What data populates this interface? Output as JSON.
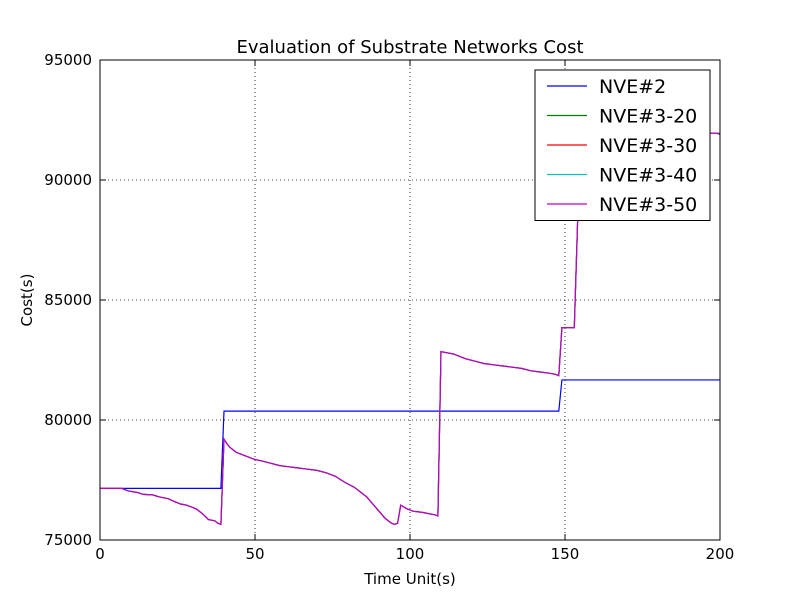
{
  "chart_data": {
    "type": "line",
    "title": "Evaluation of Substrate Networks Cost",
    "xlabel": "Time Unit(s)",
    "ylabel": "Cost(s)",
    "xlim": [
      0,
      200
    ],
    "ylim": [
      75000,
      95000
    ],
    "xticks": [
      0,
      50,
      100,
      150,
      200
    ],
    "yticks": [
      75000,
      80000,
      85000,
      90000,
      95000
    ],
    "grid": true,
    "legend_position": "top-right",
    "series": [
      {
        "name": "NVE#2",
        "color": "#0000ff",
        "x": [
          0,
          39,
          40,
          148,
          149,
          200
        ],
        "y": [
          77150,
          77150,
          80370,
          80370,
          81670,
          81670
        ]
      },
      {
        "name": "NVE#3-20",
        "color": "#008000",
        "x": [
          0,
          7,
          9,
          12,
          14,
          17,
          19,
          22,
          24,
          26,
          28,
          31,
          33,
          35,
          37,
          38,
          39,
          40,
          41,
          42,
          44,
          46,
          48,
          50,
          52,
          55,
          58,
          61,
          64,
          67,
          70,
          73,
          76,
          79,
          82,
          84,
          86,
          88,
          90,
          92,
          94,
          95,
          96,
          97,
          99,
          101,
          104,
          106,
          108,
          109,
          110,
          112,
          114,
          116,
          118,
          121,
          124,
          127,
          130,
          133,
          136,
          139,
          142,
          145,
          147,
          148,
          149,
          151,
          152,
          153,
          155,
          158,
          160,
          162,
          165,
          168,
          171,
          174,
          177,
          180,
          183,
          186,
          189,
          192,
          195,
          197,
          199,
          200
        ],
        "y": [
          77150,
          77150,
          77050,
          76980,
          76900,
          76880,
          76800,
          76720,
          76600,
          76500,
          76450,
          76300,
          76100,
          75850,
          75800,
          75700,
          75650,
          79200,
          79000,
          78850,
          78650,
          78550,
          78450,
          78350,
          78300,
          78200,
          78100,
          78050,
          78000,
          77950,
          77900,
          77800,
          77650,
          77400,
          77200,
          77000,
          76800,
          76500,
          76200,
          75900,
          75700,
          75650,
          75700,
          76450,
          76300,
          76200,
          76150,
          76100,
          76050,
          76000,
          82850,
          82800,
          82750,
          82650,
          82550,
          82450,
          82350,
          82300,
          82250,
          82200,
          82150,
          82050,
          82000,
          81950,
          81900,
          81850,
          83850,
          83850,
          83850,
          83850,
          92150,
          92100,
          92100,
          92050,
          92050,
          92050,
          92000,
          92000,
          92000,
          92000,
          92000,
          92000,
          92000,
          92000,
          92000,
          91950,
          91950,
          91950
        ]
      },
      {
        "name": "NVE#3-30",
        "color": "#ff0000",
        "x": [
          0,
          7,
          9,
          12,
          14,
          17,
          19,
          22,
          24,
          26,
          28,
          31,
          33,
          35,
          37,
          38,
          39,
          40,
          41,
          42,
          44,
          46,
          48,
          50,
          52,
          55,
          58,
          61,
          64,
          67,
          70,
          73,
          76,
          79,
          82,
          84,
          86,
          88,
          90,
          92,
          94,
          95,
          96,
          97,
          99,
          101,
          104,
          106,
          108,
          109,
          110,
          112,
          114,
          116,
          118,
          121,
          124,
          127,
          130,
          133,
          136,
          139,
          142,
          145,
          147,
          148,
          149,
          151,
          152,
          153,
          155,
          158,
          160,
          162,
          165,
          168,
          171,
          174,
          177,
          180,
          183,
          186,
          189,
          192,
          195,
          197,
          199,
          200
        ],
        "y": [
          77150,
          77150,
          77050,
          76980,
          76900,
          76880,
          76800,
          76720,
          76600,
          76500,
          76450,
          76300,
          76100,
          75850,
          75800,
          75700,
          75650,
          79200,
          79000,
          78850,
          78650,
          78550,
          78450,
          78350,
          78300,
          78200,
          78100,
          78050,
          78000,
          77950,
          77900,
          77800,
          77650,
          77400,
          77200,
          77000,
          76800,
          76500,
          76200,
          75900,
          75700,
          75650,
          75700,
          76450,
          76300,
          76200,
          76150,
          76100,
          76050,
          76000,
          82850,
          82800,
          82750,
          82650,
          82550,
          82450,
          82350,
          82300,
          82250,
          82200,
          82150,
          82050,
          82000,
          81950,
          81900,
          81850,
          83850,
          83850,
          83850,
          83850,
          92150,
          92100,
          92100,
          92050,
          92050,
          92050,
          92000,
          92000,
          92000,
          92000,
          92000,
          92000,
          92000,
          92000,
          92000,
          91950,
          91950,
          91900
        ]
      },
      {
        "name": "NVE#3-40",
        "color": "#00bfbf",
        "x": [
          0,
          7,
          9,
          12,
          14,
          17,
          19,
          22,
          24,
          26,
          28,
          31,
          33,
          35,
          37,
          38,
          39,
          40,
          41,
          42,
          44,
          46,
          48,
          50,
          52,
          55,
          58,
          61,
          64,
          67,
          70,
          73,
          76,
          79,
          82,
          84,
          86,
          88,
          90,
          92,
          94,
          95,
          96,
          97,
          99,
          101,
          104,
          106,
          108,
          109,
          110,
          112,
          114,
          116,
          118,
          121,
          124,
          127,
          130,
          133,
          136,
          139,
          142,
          145,
          147,
          148,
          149,
          151,
          152,
          153,
          155,
          158,
          160,
          162,
          165,
          168,
          171,
          174,
          177,
          180,
          183,
          186,
          189,
          192,
          195,
          197,
          199,
          200
        ],
        "y": [
          77150,
          77150,
          77050,
          76980,
          76900,
          76880,
          76800,
          76720,
          76600,
          76500,
          76450,
          76300,
          76100,
          75850,
          75800,
          75700,
          75650,
          79200,
          79000,
          78850,
          78650,
          78550,
          78450,
          78350,
          78300,
          78200,
          78100,
          78050,
          78000,
          77950,
          77900,
          77800,
          77650,
          77400,
          77200,
          77000,
          76800,
          76500,
          76200,
          75900,
          75700,
          75650,
          75700,
          76450,
          76300,
          76200,
          76150,
          76100,
          76050,
          76000,
          82850,
          82800,
          82750,
          82650,
          82550,
          82450,
          82350,
          82300,
          82250,
          82200,
          82150,
          82050,
          82000,
          81950,
          81900,
          81850,
          83850,
          83850,
          83850,
          83850,
          92150,
          92100,
          92100,
          92050,
          92050,
          92050,
          92000,
          92000,
          92000,
          92000,
          92000,
          92000,
          92000,
          92000,
          92000,
          91950,
          91950,
          91900
        ]
      },
      {
        "name": "NVE#3-50",
        "color": "#bf00bf",
        "x": [
          0,
          7,
          9,
          12,
          14,
          17,
          19,
          22,
          24,
          26,
          28,
          31,
          33,
          35,
          37,
          38,
          39,
          40,
          41,
          42,
          44,
          46,
          48,
          50,
          52,
          55,
          58,
          61,
          64,
          67,
          70,
          73,
          76,
          79,
          82,
          84,
          86,
          88,
          90,
          92,
          94,
          95,
          96,
          97,
          99,
          101,
          104,
          106,
          108,
          109,
          110,
          112,
          114,
          116,
          118,
          121,
          124,
          127,
          130,
          133,
          136,
          139,
          142,
          145,
          147,
          148,
          149,
          151,
          152,
          153,
          155,
          158,
          160,
          162,
          165,
          168,
          171,
          174,
          177,
          180,
          183,
          186,
          189,
          192,
          195,
          197,
          199,
          200
        ],
        "y": [
          77150,
          77150,
          77050,
          76980,
          76900,
          76880,
          76800,
          76720,
          76600,
          76500,
          76450,
          76300,
          76100,
          75850,
          75800,
          75700,
          75650,
          79200,
          79000,
          78850,
          78650,
          78550,
          78450,
          78350,
          78300,
          78200,
          78100,
          78050,
          78000,
          77950,
          77900,
          77800,
          77650,
          77400,
          77200,
          77000,
          76800,
          76500,
          76200,
          75900,
          75700,
          75650,
          75700,
          76450,
          76300,
          76200,
          76150,
          76100,
          76050,
          76000,
          82850,
          82800,
          82750,
          82650,
          82550,
          82450,
          82350,
          82300,
          82250,
          82200,
          82150,
          82050,
          82000,
          81950,
          81900,
          81850,
          83850,
          83850,
          83850,
          83850,
          92150,
          92100,
          92100,
          92050,
          92050,
          92050,
          92000,
          92000,
          92000,
          92000,
          92000,
          92000,
          92000,
          92000,
          92000,
          91950,
          91950,
          91900
        ]
      }
    ]
  }
}
